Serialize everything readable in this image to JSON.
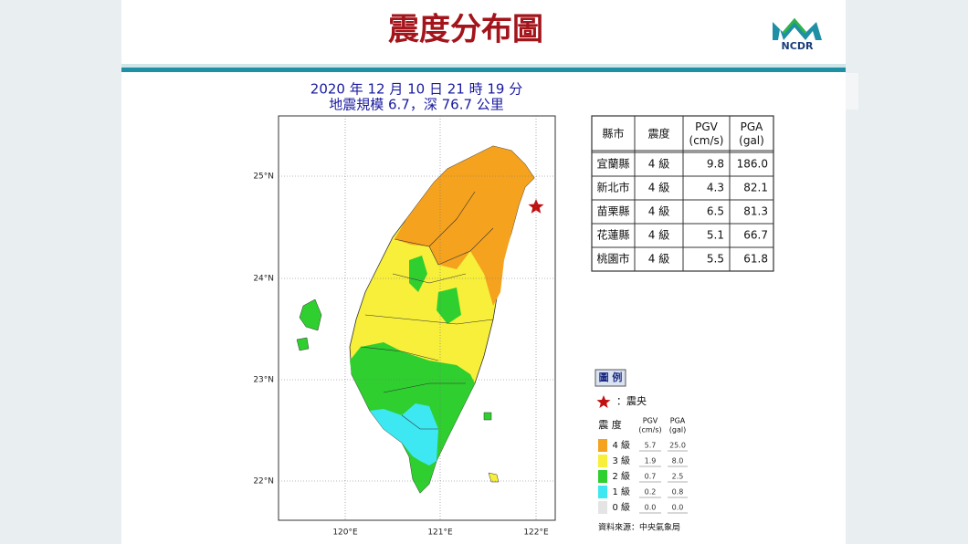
{
  "header": {
    "title": "震度分布圖",
    "logo": "NCDR"
  },
  "event": {
    "time": "2020 年 12 月 10 日 21 時 19 分",
    "info": "地震規模 6.7，深 76.7 公里"
  },
  "map": {
    "lat_labels": [
      "25°N",
      "24°N",
      "23°N",
      "22°N"
    ],
    "lon_labels": [
      "120°E",
      "121°E",
      "122°E"
    ]
  },
  "table": {
    "columns": [
      [
        "縣市"
      ],
      [
        "震度"
      ],
      [
        "PGV",
        "(cm/s)"
      ],
      [
        "PGA",
        "(gal)"
      ]
    ],
    "rows": [
      [
        "宜蘭縣",
        "4 級",
        "9.8",
        "186.0"
      ],
      [
        "新北市",
        "4 級",
        "4.3",
        "82.1"
      ],
      [
        "苗栗縣",
        "4 級",
        "6.5",
        "81.3"
      ],
      [
        "花蓮縣",
        "4 級",
        "5.1",
        "66.7"
      ],
      [
        "桃園市",
        "4 級",
        "5.5",
        "61.8"
      ]
    ]
  },
  "legend": {
    "title": "圖 例",
    "epicenter": "：震央",
    "header": [
      [
        "震 度"
      ],
      [
        "PGV",
        "(cm/s)"
      ],
      [
        "PGA",
        "(gal)"
      ]
    ],
    "levels": [
      {
        "label": "4 級",
        "color": "#f5a21e",
        "pgv": "5.7",
        "pga": "25.0"
      },
      {
        "label": "3 級",
        "color": "#f7ef3a",
        "pgv": "1.9",
        "pga": "8.0"
      },
      {
        "label": "2 級",
        "color": "#2fcf2f",
        "pgv": "0.7",
        "pga": "2.5"
      },
      {
        "label": "1 級",
        "color": "#3ee8f2",
        "pgv": "0.2",
        "pga": "0.8"
      },
      {
        "label": "0 級",
        "color": "#e4e4e4",
        "pgv": "0.0",
        "pga": "0.0"
      }
    ],
    "source": "資料來源：中央氣象局"
  }
}
